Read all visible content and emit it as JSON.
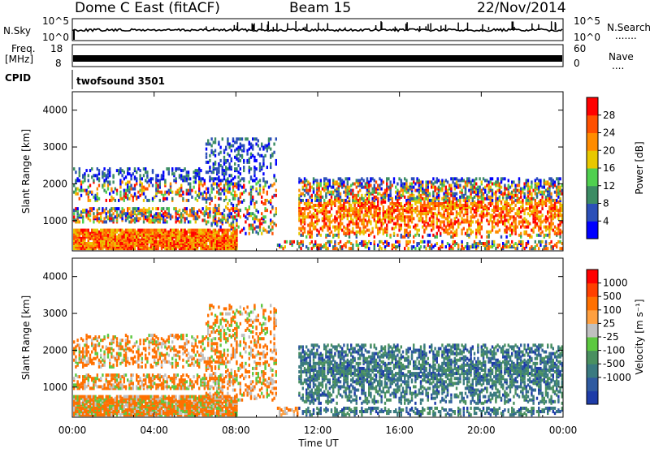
{
  "header": {
    "title": "Dome C East (fitACF)",
    "beam": "Beam 15",
    "date": "22/Nov/2014"
  },
  "strips": {
    "nsky_label": "N.Sky",
    "nsky_ticks": [
      "10^5",
      "10^0"
    ],
    "nsearch_label": "N.Search",
    "nsearch_dots": ".......",
    "freq_label": "Freq.",
    "freq_unit": "[MHz]",
    "freq_ticks": [
      "18",
      "8"
    ],
    "nave_ticks": [
      "60",
      "0"
    ],
    "nave_label": "Nave",
    "nave_dots": "....",
    "cpid_label": "CPID",
    "cpid_value": "twofsound 3501"
  },
  "chart_data": [
    {
      "type": "heatmap",
      "panel": "power",
      "ylabel": "Slant Range [km]",
      "yticks": [
        1000,
        2000,
        3000,
        4000
      ],
      "ylim": [
        180,
        4500
      ],
      "xlim": [
        0,
        24
      ],
      "colorbar_label": "Power [dB]",
      "colorbar_ticks": [
        4,
        8,
        12,
        16,
        20,
        24,
        28
      ],
      "colorbar_colors": [
        "#0000ff",
        "#2b4fb8",
        "#3c8c64",
        "#4fd04f",
        "#e8c800",
        "#ff8c00",
        "#ff5000",
        "#ff0000"
      ]
    },
    {
      "type": "heatmap",
      "panel": "velocity",
      "ylabel": "Slant Range [km]",
      "yticks": [
        1000,
        2000,
        3000,
        4000
      ],
      "ylim": [
        180,
        4500
      ],
      "xlim": [
        0,
        24
      ],
      "xlabel": "Time UT",
      "xticks": [
        "00:00",
        "04:00",
        "08:00",
        "12:00",
        "16:00",
        "20:00",
        "00:00"
      ],
      "colorbar_label": "Velocity [m s⁻¹]",
      "colorbar_ticks": [
        "1000",
        "500",
        "100",
        "25",
        "-25",
        "-100",
        "-500",
        "-1000"
      ],
      "colorbar_colors": [
        "#1e3ca8",
        "#2f5aa0",
        "#3a7a80",
        "#4a9060",
        "#5cc840",
        "#c0c0c0",
        "#ffa040",
        "#ff7000",
        "#ff4000",
        "#ff0000"
      ]
    }
  ]
}
